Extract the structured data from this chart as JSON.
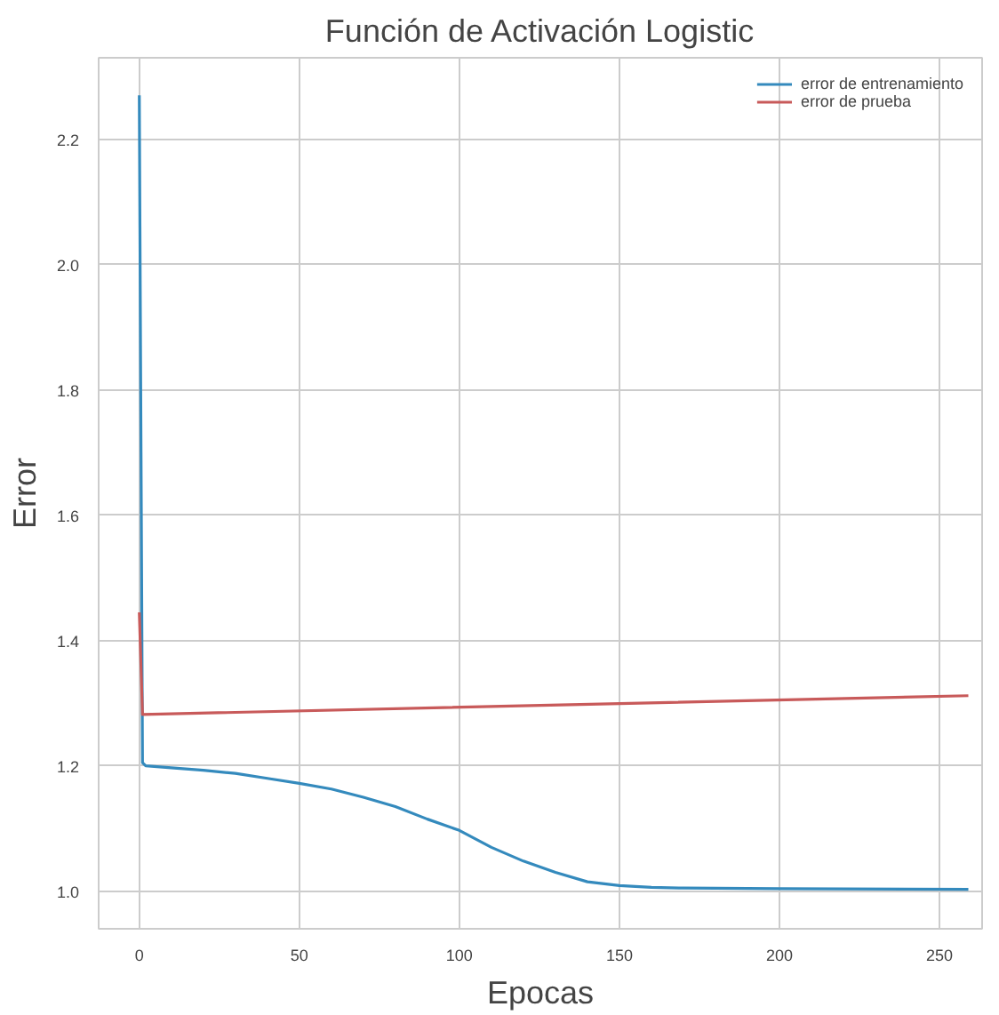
{
  "chart_data": {
    "type": "line",
    "title": "Función de Activación Logistic",
    "xlabel": "Epocas",
    "ylabel": "Error",
    "xlim": [
      -12.7,
      263.3
    ],
    "ylim": [
      0.94,
      2.33
    ],
    "xticks": [
      0,
      50,
      100,
      150,
      200,
      250
    ],
    "yticks": [
      {
        "value": 1,
        "label": "1.0"
      },
      1.2,
      1.4,
      1.6,
      1.8,
      {
        "value": 2,
        "label": "2.0"
      },
      2.2
    ],
    "grid": true,
    "legend": "top right",
    "marker": "none",
    "line_style": "solid",
    "series": [
      {
        "name": "error de entrenamiento",
        "color": "#348abd",
        "x": [
          0,
          1,
          2,
          10,
          20,
          30,
          40,
          50,
          60,
          70,
          80,
          90,
          100,
          110,
          120,
          130,
          140,
          150,
          160,
          170,
          200,
          259
        ],
        "values": [
          2.27,
          1.205,
          1.2,
          1.197,
          1.193,
          1.188,
          1.18,
          1.172,
          1.163,
          1.15,
          1.135,
          1.115,
          1.097,
          1.07,
          1.048,
          1.03,
          1.015,
          1.009,
          1.006,
          1.005,
          1.004,
          1.003
        ]
      },
      {
        "name": "error de prueba",
        "color": "#c85a5a",
        "x": [
          0,
          1,
          259
        ],
        "values": [
          1.445,
          1.282,
          1.312
        ]
      }
    ]
  }
}
